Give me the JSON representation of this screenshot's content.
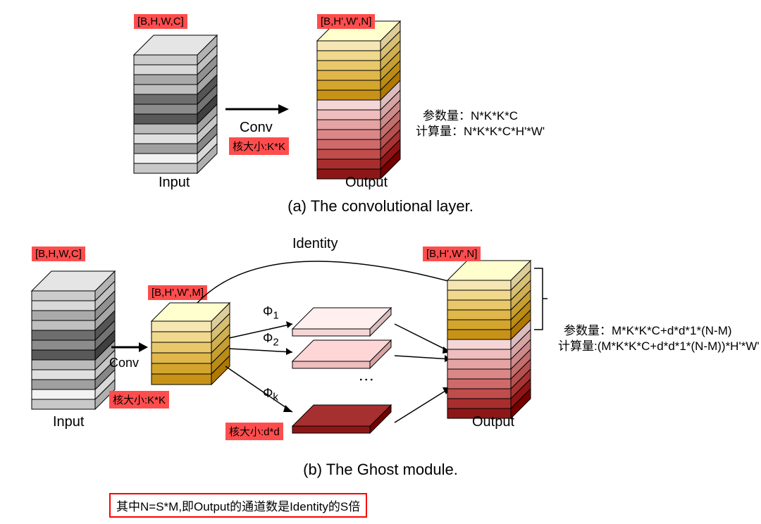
{
  "panelA": {
    "input_dims": "[B,H,W,C]",
    "output_dims": "[B,H',W',N]",
    "conv_label": "Conv",
    "kernel_label": "核大小:K*K",
    "input_label": "Input",
    "output_label": "Output",
    "caption": "(a)  The convolutional layer.",
    "params": "参数量：N*K*K*C",
    "compute": "计算量：N*K*K*C*H'*W'",
    "input_colors": [
      "#cccccc",
      "#d9d9d9",
      "#aaaaaa",
      "#bfbfbf",
      "#6e6e6e",
      "#8c8c8c",
      "#595959",
      "#bbbbbb",
      "#e0e0e0",
      "#a0a0a0",
      "#f2f2f2",
      "#c8c8c8"
    ],
    "output_colors": [
      "#f6e6b4",
      "#f0d98c",
      "#e8c86a",
      "#dfb74a",
      "#d4a52d",
      "#c89217",
      "#f5d6d6",
      "#efbdbd",
      "#e6a3a3",
      "#dc8787",
      "#cf6a6a",
      "#c04c4c",
      "#a82e2e",
      "#8d1717"
    ]
  },
  "panelB": {
    "input_dims": "[B,H,W,C]",
    "inter_dims": "[B,H',W',M]",
    "output_dims": "[B,H',W',N]",
    "conv_label": "Conv",
    "kernel_label1": "核大小:K*K",
    "kernel_label2": "核大小:d*d",
    "identity_label": "Identity",
    "phi1": "Φ1",
    "phi2": "Φ2",
    "phik": "Φk",
    "input_label": "Input",
    "output_label": "Output",
    "caption": "(b)  The Ghost module.",
    "params": "参数量：M*K*K*C+d*d*1*(N-M)",
    "compute": "计算量:(M*K*K*C+d*d*1*(N-M))*H'*W'",
    "input_colors": [
      "#cccccc",
      "#d9d9d9",
      "#aaaaaa",
      "#bfbfbf",
      "#6e6e6e",
      "#8c8c8c",
      "#595959",
      "#bbbbbb",
      "#e0e0e0",
      "#a0a0a0",
      "#f2f2f2",
      "#c8c8c8"
    ],
    "inter_colors": [
      "#f6e6b4",
      "#f0d98c",
      "#e8c86a",
      "#dfb74a",
      "#d4a52d",
      "#c89217"
    ],
    "output_colors": [
      "#f6e6b4",
      "#f0d98c",
      "#e8c86a",
      "#dfb74a",
      "#d4a52d",
      "#c89217",
      "#f5d6d6",
      "#efbdbd",
      "#e6a3a3",
      "#dc8787",
      "#cf6a6a",
      "#c04c4c",
      "#a82e2e",
      "#8d1717"
    ],
    "slab_colors": [
      "#f5d6d6",
      "#efbdbd",
      "#8d1717"
    ],
    "note": "其中N=S*M,即Output的通道数是Identity的S倍"
  },
  "style": {
    "bg": "#ffffff",
    "annotation_bg": "#ff4d4d",
    "note_border": "#ff0000",
    "stroke": "#000000"
  }
}
